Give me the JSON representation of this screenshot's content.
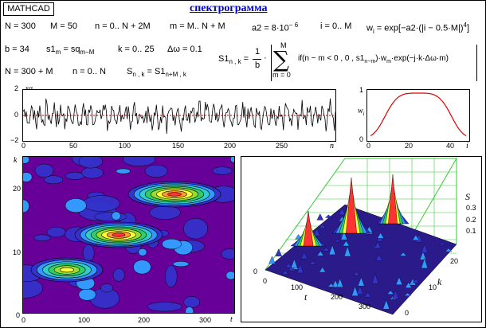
{
  "app": {
    "badge": "MATHCAD",
    "title": "спектрограмма"
  },
  "definitions": {
    "row1": {
      "N": "N = 300",
      "M": "M = 50",
      "n_range": "n = 0.. N + 2M",
      "m_range": "m = M.. N + M",
      "a2": "a2 = 8·10",
      "a2_exp": "− 6",
      "i_range": "i = 0.. M",
      "w_lhs": "w",
      "w_sub": "i",
      "w_rhs": "= exp[−a2·(|i − 0.5·M|)",
      "w_exp": "4",
      "w_close": "]"
    },
    "row2": {
      "b": "b = 34",
      "s1_lhs": "s1",
      "s1_sub": "m",
      "s1_rhs": "= sq",
      "s1_rsub": "m−M",
      "k_range": "k = 0.. 25",
      "dw": "Δω = 0.1"
    },
    "row3": {
      "N2": "N = 300 + M",
      "n2": "n = 0.. N",
      "S_lhs": "S",
      "S_sub": "n , k",
      "S_rhs": "= S1",
      "S_rsub": "n+M , k"
    },
    "sum_formula": {
      "lhs": "S1",
      "lhs_sub": "n , k",
      "frac_num": "1",
      "frac_den": "b",
      "upper": "M",
      "lower": "m = 0",
      "body": "if(n − m < 0 , 0 , s1",
      "body_sub": "n−m",
      "body_tail": ")·w",
      "body_sub2": "m",
      "body_end": "·exp(−j·k·Δω·m)"
    }
  },
  "signal_plot": {
    "ylabel": "sq",
    "ylabel_sub": "n",
    "xlabel": "n",
    "xticks": [
      "0",
      "50",
      "100",
      "150",
      "200",
      "250"
    ],
    "yticks": [
      "2",
      "0",
      "−2"
    ],
    "line_color": "#000000",
    "zero_line_color": "#cc0000"
  },
  "window_plot": {
    "ylabel": "w",
    "ylabel_sub": "i",
    "xlabel": "i",
    "xticks": [
      "0",
      "20",
      "40"
    ],
    "yticks": [
      "1",
      "0.5",
      "0"
    ],
    "line_color": "#e00000"
  },
  "contour_plot": {
    "ylabel": "k",
    "xlabel": "t",
    "xticks": [
      "0",
      "100",
      "200",
      "300"
    ],
    "yticks": [
      "20",
      "10",
      "0"
    ],
    "background": "#660099"
  },
  "surface_plot": {
    "zlabel": "S",
    "zticks": [
      "0.3",
      "0.2",
      "0.1",
      "0"
    ],
    "klabel": "k",
    "kticks": [
      "20",
      "10",
      "0"
    ],
    "tlabel": "t",
    "tticks": [
      "0",
      "100",
      "200",
      "300"
    ],
    "grid_color": "#33cc33"
  }
}
